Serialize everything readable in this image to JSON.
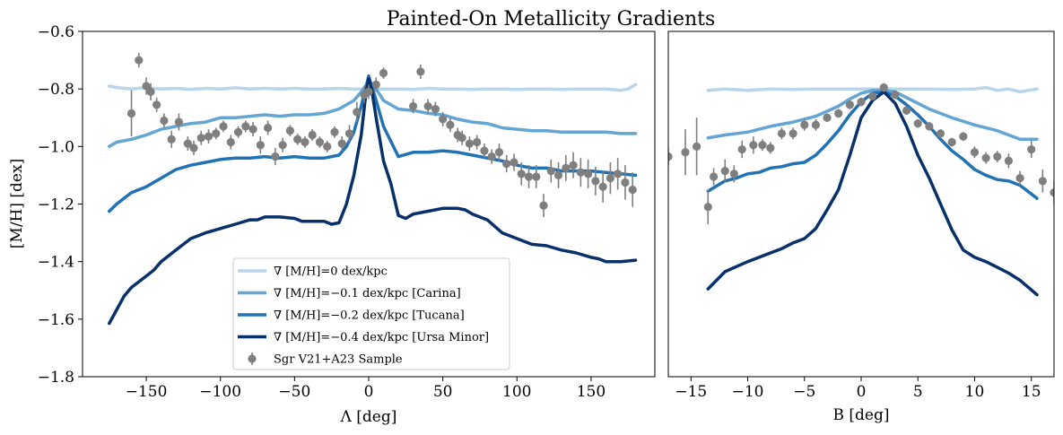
{
  "chart_data": {
    "type": "line",
    "title": "Painted-On Metallicity Gradients",
    "panels": [
      {
        "id": "lambda",
        "xlabel": "Λ [deg]",
        "ylabel": "[M/H] [dex]",
        "xlim": [
          -193,
          193
        ],
        "ylim": [
          -1.8,
          -0.6
        ],
        "xticks": [
          -150,
          -100,
          -50,
          0,
          50,
          100,
          150
        ],
        "xtick_labels": [
          "−150",
          "−100",
          "−50",
          "0",
          "50",
          "100",
          "150"
        ],
        "yticks": [
          -1.8,
          -1.6,
          -1.4,
          -1.2,
          -1.0,
          -0.8,
          -0.6
        ],
        "ytick_labels": [
          "−1.8",
          "−1.6",
          "−1.4",
          "−1.2",
          "−1.0",
          "−0.8",
          "−0.6"
        ],
        "series": [
          {
            "name": "∇ [M/H]=0 dex/kpc",
            "color": "#b8d5ea",
            "x": [
              -175,
              -170,
              -160,
              -150,
              -140,
              -130,
              -120,
              -110,
              -100,
              -90,
              -80,
              -70,
              -60,
              -50,
              -40,
              -30,
              -20,
              -10,
              -5,
              0,
              5,
              10,
              20,
              30,
              40,
              50,
              60,
              70,
              80,
              90,
              100,
              110,
              120,
              130,
              140,
              150,
              160,
              170,
              175,
              180
            ],
            "y": [
              -0.79,
              -0.795,
              -0.8,
              -0.795,
              -0.8,
              -0.798,
              -0.802,
              -0.798,
              -0.8,
              -0.796,
              -0.8,
              -0.798,
              -0.8,
              -0.798,
              -0.8,
              -0.8,
              -0.798,
              -0.8,
              -0.8,
              -0.795,
              -0.8,
              -0.8,
              -0.8,
              -0.802,
              -0.798,
              -0.8,
              -0.8,
              -0.802,
              -0.8,
              -0.8,
              -0.802,
              -0.8,
              -0.8,
              -0.802,
              -0.8,
              -0.8,
              -0.8,
              -0.805,
              -0.8,
              -0.785
            ]
          },
          {
            "name": "∇ [M/H]=−0.1 dex/kpc [Carina]",
            "color": "#63a5d3",
            "x": [
              -175,
              -170,
              -160,
              -150,
              -140,
              -130,
              -120,
              -110,
              -100,
              -90,
              -80,
              -70,
              -60,
              -50,
              -40,
              -30,
              -20,
              -10,
              -5,
              0,
              5,
              10,
              20,
              30,
              40,
              50,
              60,
              70,
              80,
              90,
              100,
              110,
              120,
              130,
              140,
              150,
              160,
              170,
              180
            ],
            "y": [
              -1.0,
              -0.985,
              -0.975,
              -0.96,
              -0.94,
              -0.93,
              -0.92,
              -0.915,
              -0.9,
              -0.9,
              -0.895,
              -0.89,
              -0.895,
              -0.89,
              -0.89,
              -0.885,
              -0.87,
              -0.84,
              -0.81,
              -0.775,
              -0.8,
              -0.84,
              -0.87,
              -0.875,
              -0.885,
              -0.89,
              -0.905,
              -0.915,
              -0.92,
              -0.935,
              -0.94,
              -0.945,
              -0.945,
              -0.95,
              -0.95,
              -0.95,
              -0.95,
              -0.955,
              -0.955
            ]
          },
          {
            "name": "∇ [M/H]=−0.2 dex/kpc [Tucana]",
            "color": "#2171b5",
            "x": [
              -175,
              -170,
              -160,
              -150,
              -140,
              -130,
              -120,
              -110,
              -100,
              -90,
              -80,
              -70,
              -60,
              -50,
              -40,
              -30,
              -20,
              -15,
              -10,
              -5,
              0,
              5,
              10,
              20,
              30,
              40,
              50,
              60,
              70,
              80,
              90,
              100,
              110,
              120,
              130,
              140,
              150,
              160,
              170,
              180
            ],
            "y": [
              -1.225,
              -1.2,
              -1.16,
              -1.14,
              -1.11,
              -1.08,
              -1.065,
              -1.055,
              -1.045,
              -1.04,
              -1.04,
              -1.035,
              -1.04,
              -1.035,
              -1.04,
              -1.04,
              -1.03,
              -1.0,
              -0.95,
              -0.86,
              -0.755,
              -0.84,
              -0.93,
              -1.035,
              -1.02,
              -1.02,
              -1.015,
              -1.02,
              -1.03,
              -1.04,
              -1.05,
              -1.065,
              -1.075,
              -1.075,
              -1.085,
              -1.085,
              -1.085,
              -1.09,
              -1.095,
              -1.1
            ]
          },
          {
            "name": "∇ [M/H]=−0.4 dex/kpc [Ursa Minor]",
            "color": "#08306b",
            "x": [
              -175,
              -165,
              -160,
              -150,
              -145,
              -140,
              -130,
              -120,
              -110,
              -100,
              -90,
              -80,
              -75,
              -70,
              -60,
              -50,
              -45,
              -40,
              -30,
              -25,
              -20,
              -15,
              -10,
              -5,
              -2,
              0,
              2,
              5,
              10,
              15,
              20,
              25,
              30,
              35,
              40,
              50,
              60,
              65,
              70,
              80,
              90,
              100,
              110,
              120,
              130,
              140,
              150,
              155,
              160,
              170,
              180
            ],
            "y": [
              -1.615,
              -1.52,
              -1.49,
              -1.45,
              -1.43,
              -1.4,
              -1.36,
              -1.32,
              -1.3,
              -1.285,
              -1.27,
              -1.255,
              -1.255,
              -1.245,
              -1.245,
              -1.25,
              -1.26,
              -1.26,
              -1.26,
              -1.27,
              -1.265,
              -1.2,
              -1.1,
              -0.96,
              -0.82,
              -0.765,
              -0.8,
              -0.9,
              -1.05,
              -1.13,
              -1.24,
              -1.25,
              -1.235,
              -1.23,
              -1.225,
              -1.215,
              -1.215,
              -1.22,
              -1.235,
              -1.255,
              -1.3,
              -1.32,
              -1.34,
              -1.345,
              -1.36,
              -1.37,
              -1.385,
              -1.39,
              -1.4,
              -1.4,
              -1.395
            ]
          }
        ],
        "scatter": {
          "name": "Sgr V21+A23 Sample",
          "color": "#7f7f7f",
          "x": [
            -160,
            -155,
            -150,
            -147,
            -143,
            -138,
            -133,
            -128,
            -122,
            -118,
            -113,
            -108,
            -103,
            -98,
            -93,
            -88,
            -83,
            -78,
            -73,
            -68,
            -63,
            -58,
            -53,
            -48,
            -43,
            -38,
            -33,
            -28,
            -23,
            -18,
            -13,
            -8,
            -3,
            0,
            5,
            10,
            30,
            35,
            40,
            45,
            50,
            55,
            60,
            63,
            68,
            73,
            78,
            83,
            88,
            93,
            98,
            103,
            108,
            113,
            118,
            123,
            128,
            133,
            138,
            143,
            148,
            153,
            158,
            163,
            168,
            173,
            178
          ],
          "y": [
            -0.885,
            -0.7,
            -0.79,
            -0.81,
            -0.855,
            -0.91,
            -0.975,
            -0.915,
            -0.99,
            -1.005,
            -0.97,
            -0.965,
            -0.955,
            -0.93,
            -0.985,
            -0.95,
            -0.93,
            -0.94,
            -0.995,
            -0.935,
            -1.035,
            -0.995,
            -0.945,
            -0.975,
            -0.985,
            -0.96,
            -0.985,
            -1.0,
            -0.95,
            -0.99,
            -0.955,
            -0.88,
            -0.82,
            -0.81,
            -0.785,
            -0.745,
            -0.86,
            -0.74,
            -0.86,
            -0.87,
            -0.905,
            -0.925,
            -0.96,
            -0.97,
            -0.99,
            -0.985,
            -1.015,
            -1.035,
            -1.02,
            -1.06,
            -1.055,
            -1.095,
            -1.105,
            -1.105,
            -1.205,
            -1.085,
            -1.1,
            -1.075,
            -1.065,
            -1.09,
            -1.095,
            -1.12,
            -1.14,
            -1.11,
            -1.095,
            -1.125,
            -1.15
          ],
          "err": [
            0.08,
            0.025,
            0.03,
            0.03,
            0.025,
            0.025,
            0.03,
            0.03,
            0.025,
            0.025,
            0.025,
            0.025,
            0.02,
            0.02,
            0.025,
            0.02,
            0.02,
            0.025,
            0.03,
            0.025,
            0.03,
            0.025,
            0.02,
            0.02,
            0.02,
            0.02,
            0.02,
            0.02,
            0.02,
            0.025,
            0.03,
            0.035,
            0.03,
            0.025,
            0.025,
            0.02,
            0.025,
            0.025,
            0.025,
            0.025,
            0.025,
            0.025,
            0.025,
            0.025,
            0.025,
            0.025,
            0.025,
            0.025,
            0.03,
            0.03,
            0.03,
            0.04,
            0.04,
            0.04,
            0.04,
            0.04,
            0.045,
            0.045,
            0.045,
            0.05,
            0.05,
            0.05,
            0.055,
            0.055,
            0.055,
            0.06,
            0.06
          ]
        }
      },
      {
        "id": "beta",
        "xlabel": "B [deg]",
        "xlim": [
          -17,
          17
        ],
        "ylim": [
          -1.8,
          -0.6
        ],
        "xticks": [
          -15,
          -10,
          -5,
          0,
          5,
          10,
          15
        ],
        "xtick_labels": [
          "−15",
          "−10",
          "−5",
          "0",
          "5",
          "10",
          "15"
        ],
        "series": [
          {
            "name": "∇ [M/H]=0 dex/kpc",
            "color": "#b8d5ea",
            "x": [
              -13.5,
              -12,
              -10,
              -8,
              -6,
              -4,
              -2,
              0,
              2,
              4,
              6,
              8,
              10,
              11,
              12,
              13,
              14,
              15.5
            ],
            "y": [
              -0.805,
              -0.8,
              -0.805,
              -0.8,
              -0.802,
              -0.8,
              -0.8,
              -0.8,
              -0.8,
              -0.8,
              -0.8,
              -0.802,
              -0.8,
              -0.795,
              -0.805,
              -0.8,
              -0.81,
              -0.8
            ]
          },
          {
            "name": "∇ [M/H]=−0.1 dex/kpc [Carina]",
            "color": "#63a5d3",
            "x": [
              -13.5,
              -12,
              -10,
              -8,
              -6,
              -4,
              -2,
              -1,
              0,
              1,
              2,
              3,
              4,
              6,
              8,
              10,
              12,
              14,
              15.5
            ],
            "y": [
              -0.97,
              -0.96,
              -0.95,
              -0.93,
              -0.915,
              -0.895,
              -0.86,
              -0.835,
              -0.815,
              -0.805,
              -0.805,
              -0.81,
              -0.83,
              -0.87,
              -0.9,
              -0.925,
              -0.945,
              -0.975,
              -0.975
            ]
          },
          {
            "name": "∇ [M/H]=−0.2 dex/kpc [Tucana]",
            "color": "#2171b5",
            "x": [
              -13.5,
              -12,
              -11,
              -10,
              -9,
              -8,
              -7,
              -6,
              -5,
              -4,
              -3,
              -2,
              -1,
              0,
              1,
              2,
              3,
              4,
              5,
              6,
              7,
              8,
              9,
              10,
              11,
              12,
              13,
              14,
              15.5
            ],
            "y": [
              -1.155,
              -1.12,
              -1.11,
              -1.095,
              -1.09,
              -1.075,
              -1.07,
              -1.06,
              -1.055,
              -1.03,
              -0.99,
              -0.945,
              -0.89,
              -0.845,
              -0.815,
              -0.81,
              -0.825,
              -0.855,
              -0.89,
              -0.93,
              -0.975,
              -1.015,
              -1.045,
              -1.08,
              -1.1,
              -1.115,
              -1.12,
              -1.135,
              -1.18
            ]
          },
          {
            "name": "∇ [M/H]=−0.4 dex/kpc [Ursa Minor]",
            "color": "#08306b",
            "x": [
              -13.5,
              -12,
              -10,
              -9,
              -8,
              -7,
              -6,
              -5,
              -4,
              -3,
              -2,
              -1,
              0,
              1,
              2,
              3,
              4,
              5,
              6,
              7,
              8,
              9,
              10,
              11,
              12,
              13,
              14,
              15.5
            ],
            "y": [
              -1.495,
              -1.435,
              -1.4,
              -1.385,
              -1.37,
              -1.355,
              -1.335,
              -1.32,
              -1.285,
              -1.22,
              -1.15,
              -1.03,
              -0.9,
              -0.84,
              -0.81,
              -0.85,
              -0.93,
              -1.03,
              -1.11,
              -1.2,
              -1.29,
              -1.36,
              -1.385,
              -1.4,
              -1.42,
              -1.44,
              -1.465,
              -1.515
            ]
          }
        ],
        "scatter": {
          "name": "Sgr V21+A23 Sample",
          "color": "#7f7f7f",
          "x": [
            -17,
            -15.5,
            -14.5,
            -13.5,
            -13,
            -12,
            -11.2,
            -10.5,
            -9.5,
            -8.7,
            -8,
            -7,
            -6,
            -5,
            -4,
            -3,
            -2,
            -1,
            0,
            1,
            2,
            3,
            4,
            5,
            6,
            7,
            8,
            9,
            10,
            11,
            12,
            13,
            14,
            15,
            16,
            17
          ],
          "y": [
            -1.035,
            -1.02,
            -1.0,
            -1.21,
            -1.105,
            -1.085,
            -1.095,
            -1.01,
            -0.995,
            -0.995,
            -1.005,
            -0.955,
            -0.955,
            -0.925,
            -0.925,
            -0.9,
            -0.885,
            -0.855,
            -0.845,
            -0.825,
            -0.795,
            -0.82,
            -0.875,
            -0.92,
            -0.93,
            -0.955,
            -0.985,
            -0.965,
            -1.02,
            -1.04,
            -1.035,
            -1.05,
            -1.11,
            -1.01,
            -1.12,
            -1.16
          ],
          "err": [
            0.03,
            0.08,
            0.1,
            0.06,
            0.03,
            0.04,
            0.03,
            0.03,
            0.03,
            0.02,
            0.02,
            0.02,
            0.02,
            0.02,
            0.02,
            0.015,
            0.015,
            0.015,
            0.015,
            0.015,
            0.015,
            0.015,
            0.015,
            0.015,
            0.015,
            0.015,
            0.015,
            0.015,
            0.02,
            0.02,
            0.02,
            0.025,
            0.025,
            0.03,
            0.04,
            0.04
          ]
        }
      }
    ],
    "legend": {
      "placement": "lower-center of left panel",
      "entries": [
        "∇ [M/H]=0 dex/kpc",
        "∇ [M/H]=−0.1 dex/kpc [Carina]",
        "∇ [M/H]=−0.2 dex/kpc [Tucana]",
        "∇ [M/H]=−0.4 dex/kpc [Ursa Minor]",
        "Sgr V21+A23 Sample"
      ],
      "colors": [
        "#b8d5ea",
        "#63a5d3",
        "#2171b5",
        "#08306b",
        "#7f7f7f"
      ]
    }
  }
}
